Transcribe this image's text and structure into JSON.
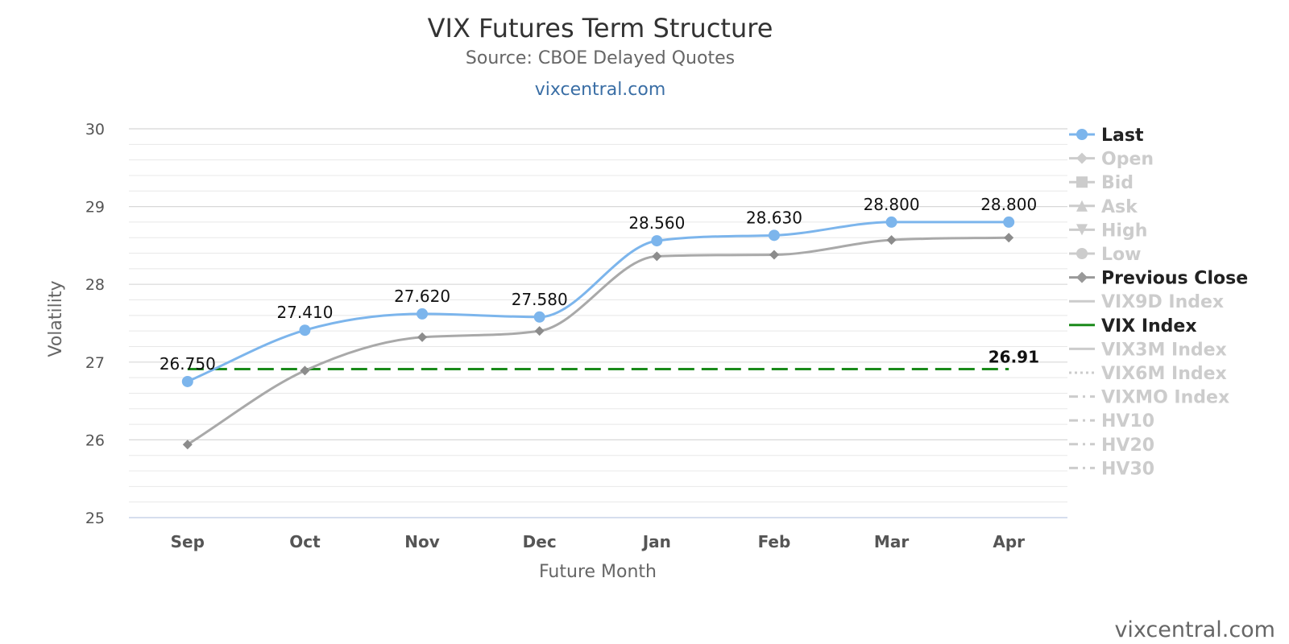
{
  "chart_data": {
    "type": "line",
    "title": "VIX Futures Term Structure",
    "subtitle": "Source: CBOE Delayed Quotes",
    "site_link": "vixcentral.com",
    "credit": "vixcentral.com",
    "xlabel": "Future Month",
    "ylabel": "Volatility",
    "categories": [
      "Sep",
      "Oct",
      "Nov",
      "Dec",
      "Jan",
      "Feb",
      "Mar",
      "Apr"
    ],
    "ylim": [
      25,
      30
    ],
    "yticks": [
      25,
      26,
      27,
      28,
      29,
      30
    ],
    "grid": true,
    "legend_position": "right",
    "series": [
      {
        "name": "Last",
        "values": [
          26.75,
          27.41,
          27.62,
          27.58,
          28.56,
          28.63,
          28.8,
          28.8
        ],
        "data_labels": [
          "26.750",
          "27.410",
          "27.620",
          "27.580",
          "28.560",
          "28.630",
          "28.800",
          "28.800"
        ],
        "color": "#7cb5ec",
        "marker": "circle"
      },
      {
        "name": "Previous Close",
        "values": [
          25.94,
          26.89,
          27.32,
          27.4,
          28.36,
          28.38,
          28.57,
          28.6
        ],
        "color": "#a9a9a9",
        "marker": "diamond"
      },
      {
        "name": "VIX Index",
        "value": 26.91,
        "value_label": "26.91",
        "color": "#1a8a1a",
        "style": "dashed"
      }
    ],
    "legend": [
      {
        "name": "Last",
        "active": true,
        "symbol": "circle",
        "color": "#7cb5ec"
      },
      {
        "name": "Open",
        "active": false,
        "symbol": "diamond"
      },
      {
        "name": "Bid",
        "active": false,
        "symbol": "square"
      },
      {
        "name": "Ask",
        "active": false,
        "symbol": "triangle"
      },
      {
        "name": "High",
        "active": false,
        "symbol": "triangle-down"
      },
      {
        "name": "Low",
        "active": false,
        "symbol": "circle"
      },
      {
        "name": "Previous Close",
        "active": true,
        "symbol": "diamond",
        "color": "#999999"
      },
      {
        "name": "VIX9D Index",
        "active": false,
        "symbol": "line"
      },
      {
        "name": "VIX Index",
        "active": true,
        "symbol": "line",
        "color": "#1a8a1a"
      },
      {
        "name": "VIX3M Index",
        "active": false,
        "symbol": "line"
      },
      {
        "name": "VIX6M Index",
        "active": false,
        "symbol": "dotted"
      },
      {
        "name": "VIXMO Index",
        "active": false,
        "symbol": "dashdot"
      },
      {
        "name": "HV10",
        "active": false,
        "symbol": "dashdot"
      },
      {
        "name": "HV20",
        "active": false,
        "symbol": "dashdot"
      },
      {
        "name": "HV30",
        "active": false,
        "symbol": "dashdot"
      }
    ],
    "colors": {
      "legend_active_text": "#222222",
      "legend_inactive": "#cccccc",
      "grid": "#e6e6e6"
    }
  }
}
